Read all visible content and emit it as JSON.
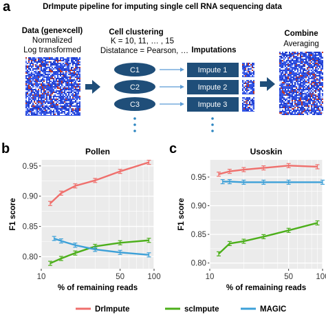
{
  "panel_a": {
    "letter": "a",
    "title": "DrImpute pipeline for imputing single cell RNA sequencing data",
    "data_label": "Data (gene×cell)",
    "data_sub1": "Normalized",
    "data_sub2": "Log transformed",
    "clustering_title": "Cell clustering",
    "clustering_line1": "K = 10, 11, … , 15",
    "clustering_line2": "Distatance = Pearson, …",
    "imputations_title": "Imputations",
    "clusters": [
      "C1",
      "C2",
      "C3"
    ],
    "imputes": [
      "Impute 1",
      "Impute 2",
      "Impute 3"
    ],
    "combine_title": "Combine",
    "combine_sub": "Averaging",
    "colors": {
      "cluster_fill": "#1f4e79",
      "impute_fill": "#1f4e79",
      "arrow": "#1f4e79",
      "heatmap_base": "#2f4fe0",
      "dots": "#2e86c1"
    }
  },
  "panel_b": {
    "letter": "b"
  },
  "panel_c": {
    "letter": "c"
  },
  "legend": {
    "items": [
      {
        "label": "DrImpute",
        "color": "#ef6f6c"
      },
      {
        "label": "scImpute",
        "color": "#4caf1a"
      },
      {
        "label": "MAGIC",
        "color": "#3ca0d8"
      }
    ]
  },
  "chart_data": [
    {
      "type": "line",
      "title": "Pollen",
      "xlabel": "% of remaining reads",
      "ylabel": "F1 score",
      "x_scale": "log",
      "xlim": [
        10,
        100
      ],
      "ylim": [
        0.78,
        0.96
      ],
      "x_ticks": [
        10,
        50,
        100
      ],
      "y_ticks": [
        0.8,
        0.85,
        0.9,
        0.95
      ],
      "y_tick_labels": [
        "0.80",
        "0.85",
        "0.90",
        "0.95"
      ],
      "grid": true,
      "series": [
        {
          "name": "DrImpute",
          "color": "#ef6f6c",
          "x": [
            12,
            15,
            20,
            30,
            50,
            90
          ],
          "y": [
            0.888,
            0.905,
            0.917,
            0.926,
            0.941,
            0.956
          ]
        },
        {
          "name": "scImpute",
          "color": "#4caf1a",
          "x": [
            12,
            15,
            20,
            30,
            50,
            90
          ],
          "y": [
            0.789,
            0.797,
            0.806,
            0.817,
            0.823,
            0.827
          ]
        },
        {
          "name": "MAGIC",
          "color": "#3ca0d8",
          "x": [
            13,
            15,
            20,
            30,
            50,
            90
          ],
          "y": [
            0.83,
            0.826,
            0.819,
            0.812,
            0.807,
            0.803
          ]
        }
      ]
    },
    {
      "type": "line",
      "title": "Usoskin",
      "xlabel": "% of remaining reads",
      "ylabel": "F1 score",
      "x_scale": "log",
      "xlim": [
        10,
        100
      ],
      "ylim": [
        0.79,
        0.98
      ],
      "x_ticks": [
        10,
        50,
        100
      ],
      "y_ticks": [
        0.8,
        0.85,
        0.9,
        0.95
      ],
      "y_tick_labels": [
        "0.80",
        "0.85",
        "0.90",
        "0.95"
      ],
      "grid": true,
      "series": [
        {
          "name": "DrImpute",
          "color": "#ef6f6c",
          "x": [
            12,
            15,
            20,
            30,
            50,
            90
          ],
          "y": [
            0.955,
            0.96,
            0.963,
            0.966,
            0.97,
            0.968
          ]
        },
        {
          "name": "scImpute",
          "color": "#4caf1a",
          "x": [
            12,
            15,
            20,
            30,
            50,
            90
          ],
          "y": [
            0.816,
            0.834,
            0.838,
            0.846,
            0.857,
            0.87
          ]
        },
        {
          "name": "MAGIC",
          "color": "#3ca0d8",
          "x": [
            13,
            15,
            20,
            30,
            50,
            100
          ],
          "y": [
            0.942,
            0.942,
            0.941,
            0.941,
            0.941,
            0.941
          ]
        }
      ]
    }
  ]
}
